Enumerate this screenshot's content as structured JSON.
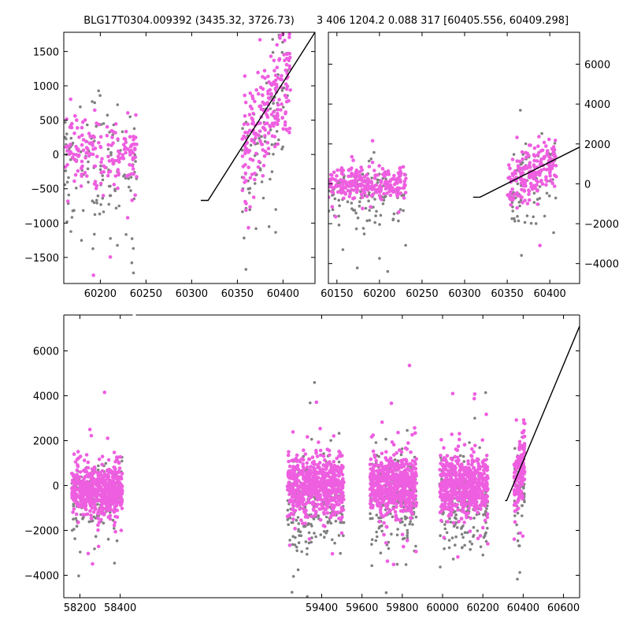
{
  "titles": {
    "left": "BLG17T0304.009392 (3435.32, 3726.73)",
    "right": "3 406 1204.2 0.088 317 [60405.556, 60409.298]"
  },
  "colors": {
    "primary": "#ee5ee0",
    "secondary": "#808080",
    "model": "#000000"
  },
  "chart_data": [
    {
      "type": "scatter",
      "panel": "top-left",
      "xlim": [
        60160,
        60435
      ],
      "ylim": [
        -1880,
        1780
      ],
      "xticks": [
        60200,
        60250,
        60300,
        60350,
        60400
      ],
      "yticks": [
        -1500,
        -1000,
        -500,
        0,
        500,
        1000,
        1500
      ],
      "y_axis_side": "left",
      "series": [
        {
          "role": "pink",
          "clusters": [
            {
              "x": [
                60160,
                60240
              ],
              "mean": 0,
              "sd": 300,
              "n": 170
            },
            {
              "x": [
                60355,
                60408
              ],
              "mean": 600,
              "sd": 450,
              "n": 220
            }
          ]
        },
        {
          "role": "gray",
          "clusters": [
            {
              "x": [
                60160,
                60240
              ],
              "mean": -300,
              "sd": 550,
              "n": 120
            },
            {
              "x": [
                60355,
                60408
              ],
              "mean": 200,
              "sd": 550,
              "n": 90
            }
          ]
        }
      ],
      "model_line": {
        "x": [
          60310,
          60318,
          60435
        ],
        "y": [
          -670,
          -670,
          1780
        ]
      }
    },
    {
      "type": "scatter",
      "panel": "top-right",
      "xlim": [
        60140,
        60435
      ],
      "ylim": [
        -5000,
        7600
      ],
      "xticks": [
        60150,
        60200,
        60250,
        60300,
        60350,
        60400
      ],
      "yticks": [
        -4000,
        -2000,
        0,
        2000,
        4000,
        6000
      ],
      "y_axis_side": "right",
      "series": [
        {
          "role": "pink",
          "clusters": [
            {
              "x": [
                60140,
                60232
              ],
              "mean": 0,
              "sd": 400,
              "n": 260
            },
            {
              "x": [
                60350,
                60408
              ],
              "mean": 500,
              "sd": 650,
              "n": 200
            }
          ]
        },
        {
          "role": "gray",
          "clusters": [
            {
              "x": [
                60140,
                60232
              ],
              "mean": -700,
              "sd": 900,
              "n": 120
            },
            {
              "x": [
                60350,
                60408
              ],
              "mean": 0,
              "sd": 1100,
              "n": 80
            }
          ]
        }
      ],
      "model_line": {
        "x": [
          60310,
          60318,
          60435
        ],
        "y": [
          -670,
          -670,
          1840
        ]
      }
    },
    {
      "type": "scatter",
      "panel": "bottom",
      "xlim": [
        58120,
        60680
      ],
      "ylim": [
        -5000,
        7600
      ],
      "xticks": [
        58200,
        58400,
        59400,
        59600,
        59800,
        60000,
        60200,
        60400,
        60600
      ],
      "yticks": [
        -4000,
        -2000,
        0,
        2000,
        4000,
        6000
      ],
      "y_axis_side": "left",
      "axis_break": {
        "x": 58470,
        "gap": 4
      },
      "series": [
        {
          "role": "pink",
          "clusters": [
            {
              "x": [
                58160,
                58410
              ],
              "mean": -200,
              "sd": 550,
              "n": 600
            },
            {
              "x": [
                59230,
                59510
              ],
              "mean": 0,
              "sd": 650,
              "n": 650
            },
            {
              "x": [
                59640,
                59870
              ],
              "mean": 0,
              "sd": 650,
              "n": 600
            },
            {
              "x": [
                59985,
                60225
              ],
              "mean": 0,
              "sd": 650,
              "n": 600
            },
            {
              "x": [
                60355,
                60408
              ],
              "mean": 700,
              "sd": 750,
              "n": 150
            }
          ]
        },
        {
          "role": "gray",
          "clusters": [
            {
              "x": [
                58160,
                58410
              ],
              "mean": -600,
              "sd": 900,
              "n": 130
            },
            {
              "x": [
                59230,
                59510
              ],
              "mean": -800,
              "sd": 1100,
              "n": 200
            },
            {
              "x": [
                59640,
                59870
              ],
              "mean": -800,
              "sd": 1100,
              "n": 200
            },
            {
              "x": [
                59985,
                60225
              ],
              "mean": -800,
              "sd": 1100,
              "n": 180
            },
            {
              "x": [
                60355,
                60408
              ],
              "mean": -500,
              "sd": 1000,
              "n": 50
            }
          ]
        }
      ],
      "model_line": {
        "x": [
          60310,
          60318,
          60680
        ],
        "y": [
          -670,
          -670,
          7100
        ]
      }
    }
  ]
}
